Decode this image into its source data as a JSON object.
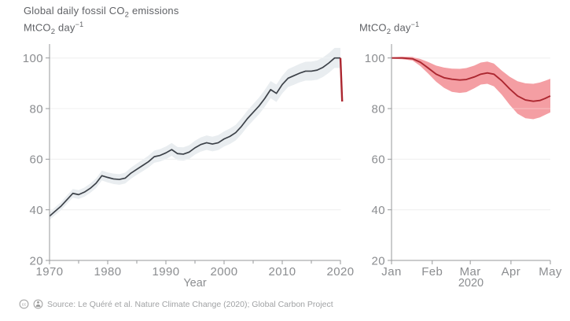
{
  "header": {
    "title": {
      "pre": "Global daily fossil CO",
      "sub": "2",
      "post": " emissions"
    },
    "unit_left": {
      "pre": "MtCO",
      "sub": "2",
      "mid": " day",
      "sup": "−1"
    },
    "unit_right": {
      "pre": "MtCO",
      "sub": "2",
      "mid": " day",
      "sup": "−1"
    }
  },
  "footer": {
    "icons": [
      "cc-icon",
      "cc-by-icon"
    ],
    "source_text": "Source: Le Quéré et al. Nature Climate Change (2020); Global Carbon Project"
  },
  "colors": {
    "background": "#ffffff",
    "grid": "#e9e9e9",
    "grid_overlay": "rgba(255,255,255,0.35)",
    "axis": "#97999b",
    "tick_text": "#8b8d90",
    "title_text": "#606266",
    "historical_line": "#3c4148",
    "historical_band": "#e9edf0",
    "covid_line": "#ac2730",
    "covid_band": "#f49ea3",
    "footer_text": "#a0a2a4"
  },
  "chart_data": [
    {
      "type": "line",
      "title": "Global daily fossil CO2 emissions",
      "xlabel": "Year",
      "ylabel": "MtCO2 day−1",
      "xlim": [
        1970,
        2020.6
      ],
      "ylim": [
        20,
        105.5
      ],
      "grid": true,
      "legend": "none",
      "x_ticks": [
        1970,
        1980,
        1990,
        2000,
        2010,
        2020
      ],
      "x_tick_labels": [
        "1970",
        "1980",
        "1990",
        "2000",
        "2010",
        "2020"
      ],
      "x_minor_ticks": [
        1975,
        1985,
        1995,
        2005,
        2015
      ],
      "y_ticks": [
        20,
        40,
        60,
        80,
        100
      ],
      "series": [
        {
          "name": "historical-emissions",
          "color": "#3c4148",
          "band_color": "#e9edf0",
          "line_width": 1.7,
          "x": [
            1970,
            1971,
            1972,
            1973,
            1974,
            1975,
            1976,
            1977,
            1978,
            1979,
            1980,
            1981,
            1982,
            1983,
            1984,
            1985,
            1986,
            1987,
            1988,
            1989,
            1990,
            1991,
            1992,
            1993,
            1994,
            1995,
            1996,
            1997,
            1998,
            1999,
            2000,
            2001,
            2002,
            2003,
            2004,
            2005,
            2006,
            2007,
            2008,
            2009,
            2010,
            2011,
            2012,
            2013,
            2014,
            2015,
            2016,
            2017,
            2018,
            2019,
            2020
          ],
          "y": [
            37.5,
            39.5,
            41.5,
            44,
            46.5,
            46,
            47,
            48.5,
            50.5,
            53.5,
            52.8,
            52.2,
            52,
            52.5,
            54.5,
            56,
            57.5,
            59,
            61,
            61.5,
            62.5,
            63.8,
            62.2,
            62,
            62.8,
            64.5,
            65.8,
            66.5,
            66,
            66.5,
            68,
            69,
            70.5,
            73,
            76,
            78.5,
            81,
            84,
            87.5,
            86,
            89.5,
            92,
            93,
            94,
            94.8,
            94.8,
            95.2,
            96.3,
            98,
            100,
            100
          ],
          "band_lo": [
            36,
            38,
            39.9,
            42.4,
            44.8,
            44.3,
            45.2,
            46.7,
            48.6,
            51.6,
            50.8,
            50.2,
            49.9,
            50.4,
            52.3,
            53.8,
            55.2,
            56.7,
            58.6,
            59.1,
            60,
            61.3,
            59.6,
            59.4,
            60.1,
            61.8,
            63,
            63.7,
            63.1,
            63.6,
            65,
            66,
            67.4,
            69.9,
            72.8,
            75.3,
            77.7,
            80.7,
            84.1,
            82.6,
            86,
            88.5,
            89.4,
            90.4,
            91.1,
            91.1,
            91.4,
            92.5,
            94.1,
            96.1,
            96
          ],
          "band_hi": [
            39,
            41.1,
            43.1,
            45.7,
            48.2,
            47.8,
            48.8,
            50.4,
            52.4,
            55.5,
            54.8,
            54.3,
            54.1,
            54.7,
            56.7,
            58.3,
            59.8,
            61.4,
            63.4,
            64,
            65,
            66.4,
            64.8,
            64.7,
            65.5,
            67.3,
            68.6,
            69.4,
            68.9,
            69.5,
            71,
            72.1,
            73.6,
            76.2,
            79.2,
            81.8,
            84.3,
            87.4,
            90.9,
            89.5,
            93,
            95.6,
            96.6,
            97.7,
            98.5,
            98.6,
            99,
            100.2,
            101.9,
            104,
            104
          ]
        },
        {
          "name": "covid-2020-drop",
          "color": "#ac2730",
          "line_width": 2.4,
          "x": [
            2020,
            2020.3
          ],
          "y": [
            100,
            82.8
          ]
        }
      ]
    },
    {
      "type": "line",
      "title": "Daily fossil CO2 emissions, Jan–May 2020",
      "xlabel": "2020",
      "ylabel": "MtCO2 day−1",
      "xlim": [
        0,
        121
      ],
      "ylim": [
        20,
        105.5
      ],
      "grid": true,
      "legend": "none",
      "x_ticks": [
        0,
        31,
        60,
        91,
        121
      ],
      "x_tick_labels": [
        "Jan",
        "Feb",
        "Mar",
        "Apr",
        "May"
      ],
      "x_minor_ticks": [],
      "y_ticks": [
        20,
        40,
        60,
        80,
        100
      ],
      "series": [
        {
          "name": "covid-2020-daily-estimate",
          "color": "#ac2730",
          "band_color": "#f49ea3",
          "line_width": 1.9,
          "x": [
            0,
            8,
            16,
            22,
            28,
            34,
            40,
            46,
            52,
            57,
            63,
            68,
            73,
            78,
            84,
            90,
            96,
            102,
            108,
            113,
            117,
            121
          ],
          "y": [
            100,
            100,
            99.7,
            98.3,
            96,
            93.6,
            92.2,
            91.6,
            91.3,
            91.5,
            92.5,
            93.6,
            94.1,
            93.6,
            91,
            87.8,
            85,
            83.4,
            82.9,
            83.2,
            84,
            85
          ],
          "band_lo": [
            99.7,
            99.5,
            99,
            96.8,
            93.8,
            90.6,
            88.2,
            86.6,
            86.2,
            86.5,
            88,
            89.5,
            89.8,
            88.8,
            85.5,
            81.5,
            78,
            76.2,
            75.8,
            76.5,
            77.5,
            78.5
          ],
          "band_hi": [
            100.3,
            100.5,
            100.4,
            99.6,
            98.4,
            97,
            96.2,
            95.8,
            95.7,
            96,
            97,
            98.2,
            98.6,
            97.8,
            95,
            92.6,
            90.8,
            90,
            89.8,
            90.3,
            91,
            91.8
          ]
        }
      ]
    }
  ]
}
